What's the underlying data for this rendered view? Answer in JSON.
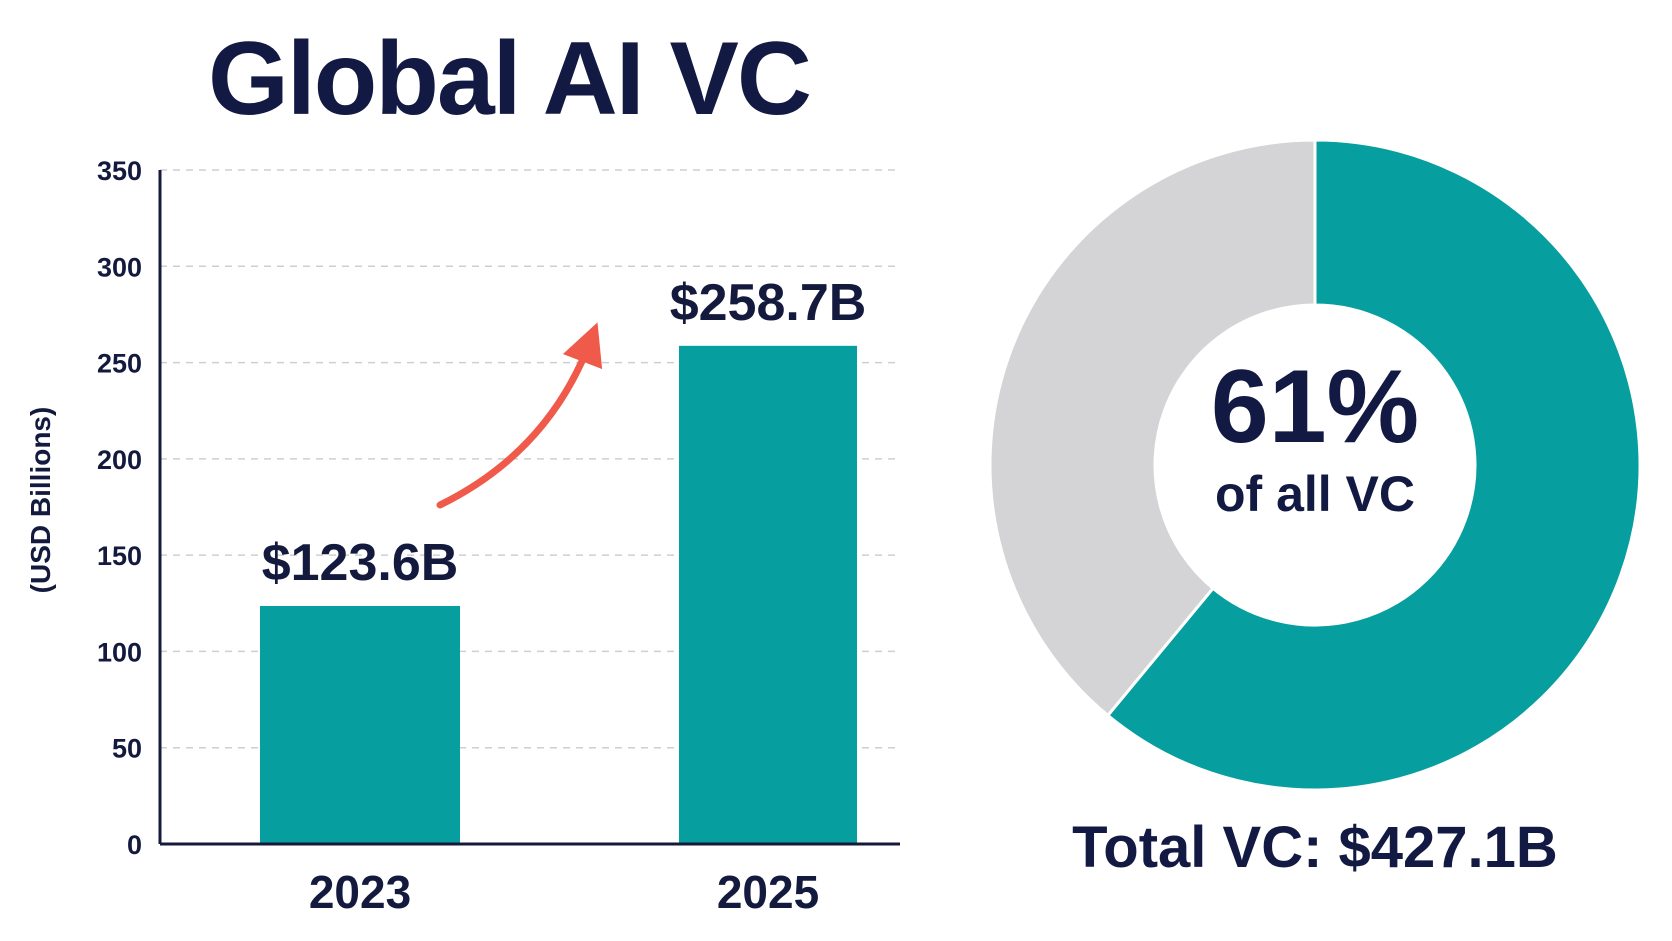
{
  "title": "Global AI VC",
  "colors": {
    "bar": "#069e9e",
    "donut_other": "#d4d4d6",
    "arrow": "#f05a4a",
    "text": "#141a3d",
    "grid": "#cfcfcf"
  },
  "chart_data": [
    {
      "type": "bar",
      "categories": [
        "2023",
        "2025"
      ],
      "values": [
        123.6,
        258.7
      ],
      "value_labels": [
        "$123.6B",
        "$258.7B"
      ],
      "ylabel": "(USD Billions)",
      "ylim": [
        0,
        350
      ],
      "yticks": [
        0,
        50,
        100,
        150,
        200,
        250,
        300,
        350
      ],
      "grid": true,
      "annotation": "growth-arrow"
    },
    {
      "type": "pie",
      "style": "donut",
      "slices": [
        {
          "value": 61,
          "color": "#069e9e"
        },
        {
          "value": 39,
          "color": "#d4d4d6"
        }
      ],
      "center_value": "61%",
      "center_label": "of all VC",
      "caption": "Total VC: $427.1B"
    }
  ]
}
